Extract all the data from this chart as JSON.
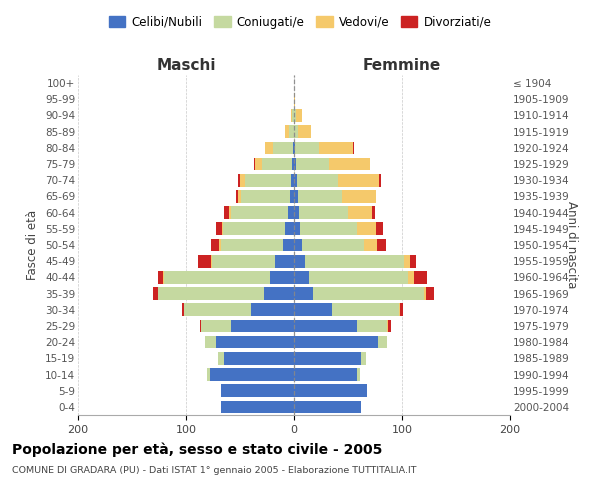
{
  "age_groups": [
    "100+",
    "95-99",
    "90-94",
    "85-89",
    "80-84",
    "75-79",
    "70-74",
    "65-69",
    "60-64",
    "55-59",
    "50-54",
    "45-49",
    "40-44",
    "35-39",
    "30-34",
    "25-29",
    "20-24",
    "15-19",
    "10-14",
    "5-9",
    "0-4"
  ],
  "birth_years": [
    "≤ 1904",
    "1905-1909",
    "1910-1914",
    "1915-1919",
    "1920-1924",
    "1925-1929",
    "1930-1934",
    "1935-1939",
    "1940-1944",
    "1945-1949",
    "1950-1954",
    "1955-1959",
    "1960-1964",
    "1965-1969",
    "1970-1974",
    "1975-1979",
    "1980-1984",
    "1985-1989",
    "1990-1994",
    "1995-1999",
    "2000-2004"
  ],
  "maschi": {
    "celibi": [
      0,
      0,
      0,
      0,
      1,
      2,
      3,
      4,
      6,
      8,
      10,
      18,
      22,
      28,
      40,
      58,
      72,
      65,
      78,
      68,
      68
    ],
    "coniugati": [
      0,
      0,
      2,
      5,
      18,
      28,
      42,
      45,
      52,
      58,
      58,
      58,
      98,
      98,
      62,
      28,
      10,
      5,
      3,
      0,
      0
    ],
    "vedovi": [
      0,
      0,
      1,
      3,
      8,
      6,
      5,
      3,
      2,
      1,
      1,
      1,
      1,
      0,
      0,
      0,
      0,
      0,
      0,
      0,
      0
    ],
    "divorziati": [
      0,
      0,
      0,
      0,
      0,
      1,
      2,
      2,
      5,
      5,
      8,
      12,
      5,
      5,
      2,
      1,
      0,
      0,
      0,
      0,
      0
    ]
  },
  "femmine": {
    "nubili": [
      0,
      0,
      0,
      0,
      1,
      2,
      3,
      4,
      5,
      6,
      7,
      10,
      14,
      18,
      35,
      58,
      78,
      62,
      58,
      68,
      62
    ],
    "coniugate": [
      0,
      0,
      2,
      4,
      22,
      30,
      38,
      40,
      45,
      52,
      58,
      92,
      92,
      102,
      62,
      28,
      8,
      5,
      3,
      0,
      0
    ],
    "vedove": [
      0,
      1,
      5,
      12,
      32,
      38,
      38,
      32,
      22,
      18,
      12,
      5,
      5,
      2,
      1,
      1,
      0,
      0,
      0,
      0,
      0
    ],
    "divorziate": [
      0,
      0,
      0,
      0,
      1,
      0,
      2,
      0,
      3,
      6,
      8,
      6,
      12,
      8,
      3,
      3,
      0,
      0,
      0,
      0,
      0
    ]
  },
  "colors": {
    "celibi": "#4472c4",
    "coniugati": "#c5d9a0",
    "vedovi": "#f5c96b",
    "divorziati": "#cc2222"
  },
  "title": "Popolazione per età, sesso e stato civile - 2005",
  "subtitle": "COMUNE DI GRADARA (PU) - Dati ISTAT 1° gennaio 2005 - Elaborazione TUTTITALIA.IT",
  "ylabel_left": "Fasce di età",
  "ylabel_right": "Anni di nascita",
  "xlabel_left": "Maschi",
  "xlabel_right": "Femmine",
  "xlim": 200,
  "legend_labels": [
    "Celibi/Nubili",
    "Coniugati/e",
    "Vedovi/e",
    "Divorziati/e"
  ]
}
